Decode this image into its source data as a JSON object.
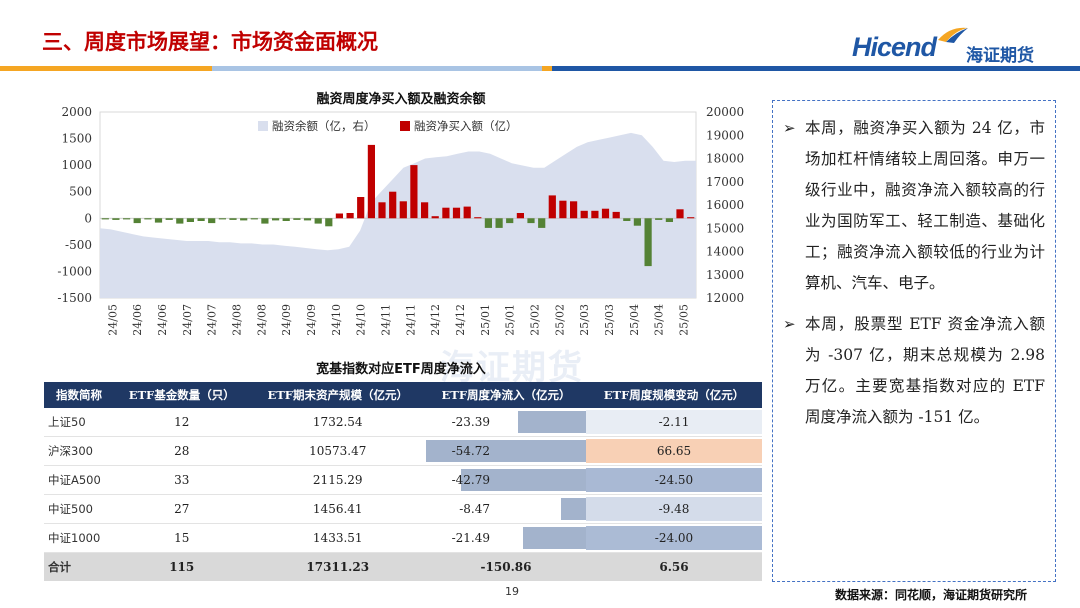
{
  "header": {
    "title": "三、周度市场展望：市场资金面概况",
    "brand_en": "Hicend",
    "brand_cn": "海证期货",
    "band_colors": [
      "#f5a623",
      "#a9c4e4",
      "#7fa7d6",
      "#1f57a5"
    ]
  },
  "chart_data": {
    "type": "bar+area",
    "title": "融资周度净买入额及融资余额",
    "legend": [
      "融资余额（亿，右）",
      "融资净买入额（亿）"
    ],
    "legend_position": "top",
    "x_labels": [
      "24/05",
      "24/06",
      "24/06",
      "24/07",
      "24/07",
      "24/08",
      "24/08",
      "24/09",
      "24/09",
      "24/10",
      "24/10",
      "24/11",
      "24/11",
      "24/12",
      "24/12",
      "25/01",
      "25/01",
      "25/02",
      "25/02",
      "25/03",
      "25/03",
      "25/04",
      "25/04",
      "25/05"
    ],
    "y_left": {
      "min": -1500,
      "max": 2000,
      "ticks": [
        2000,
        1500,
        1000,
        500,
        0,
        -500,
        -1000,
        -1500
      ]
    },
    "y_right": {
      "min": 12000,
      "max": 20000,
      "ticks": [
        20000,
        19000,
        18000,
        17000,
        16000,
        15000,
        14000,
        13000,
        12000
      ]
    },
    "net_buy": [
      -20,
      -30,
      -20,
      -90,
      -20,
      -80,
      -30,
      -100,
      -70,
      -50,
      -90,
      -20,
      -30,
      -40,
      -20,
      -100,
      -40,
      -50,
      -30,
      -40,
      -100,
      -150,
      90,
      100,
      400,
      1380,
      300,
      500,
      320,
      1000,
      300,
      40,
      200,
      200,
      220,
      20,
      -180,
      -180,
      -90,
      100,
      -90,
      -180,
      430,
      330,
      320,
      140,
      140,
      180,
      120,
      -50,
      -140,
      -900,
      -30,
      -70,
      170,
      20
    ],
    "balance": [
      15000,
      14950,
      14850,
      14750,
      14650,
      14600,
      14550,
      14500,
      14450,
      14450,
      14450,
      14400,
      14400,
      14350,
      14350,
      14300,
      14300,
      14250,
      14200,
      14150,
      14100,
      14050,
      14100,
      14200,
      14900,
      16100,
      16600,
      17100,
      17600,
      17800,
      18000,
      18050,
      18100,
      18200,
      18300,
      18300,
      18200,
      18000,
      17800,
      17700,
      17600,
      17600,
      17900,
      18200,
      18500,
      18700,
      18800,
      18900,
      19000,
      19100,
      19000,
      18500,
      17900,
      17850,
      17900,
      17900
    ],
    "colors": {
      "balance": "#d9dfee",
      "net_buy_pos": "#c00000",
      "net_buy_neg": "#548235"
    }
  },
  "table": {
    "title": "宽基指数对应ETF周度净流入",
    "headers": [
      "指数简称",
      "ETF基金数量（只）",
      "ETF期末资产规模（亿元）",
      "ETF周度净流入（亿元）",
      "ETF周度规模变动（亿元）"
    ],
    "rows": [
      {
        "name": "上证50",
        "count": "12",
        "aum": "1732.54",
        "inflow": "-23.39",
        "inflow_value": -23.39,
        "change": "-2.11",
        "change_value": -2.11
      },
      {
        "name": "沪深300",
        "count": "28",
        "aum": "10573.47",
        "inflow": "-54.72",
        "inflow_value": -54.72,
        "change": "66.65",
        "change_value": 66.65
      },
      {
        "name": "中证A500",
        "count": "33",
        "aum": "2115.29",
        "inflow": "-42.79",
        "inflow_value": -42.79,
        "change": "-24.50",
        "change_value": -24.5
      },
      {
        "name": "中证500",
        "count": "27",
        "aum": "1456.41",
        "inflow": "-8.47",
        "inflow_value": -8.47,
        "change": "-9.48",
        "change_value": -9.48
      },
      {
        "name": "中证1000",
        "count": "15",
        "aum": "1433.51",
        "inflow": "-21.49",
        "inflow_value": -21.49,
        "change": "-24.00",
        "change_value": -24.0
      }
    ],
    "total": {
      "name": "合计",
      "count": "115",
      "aum": "17311.23",
      "inflow": "-150.86",
      "change": "6.56"
    }
  },
  "notes": [
    "本周，融资净买入额为 24 亿，市场加杠杆情绪较上周回落。申万一级行业中，融资净流入额较高的行业为国防军工、轻工制造、基础化工；融资净流入额较低的行业为计算机、汽车、电子。",
    "本周，股票型 ETF 资金净流入额为 -307 亿，期末总规模为 2.98 万亿。主要宽基指数对应的 ETF 周度净流入额为 -151 亿。"
  ],
  "footer": {
    "page": "19",
    "source": "数据来源：同花顺，海证期货研究所"
  }
}
